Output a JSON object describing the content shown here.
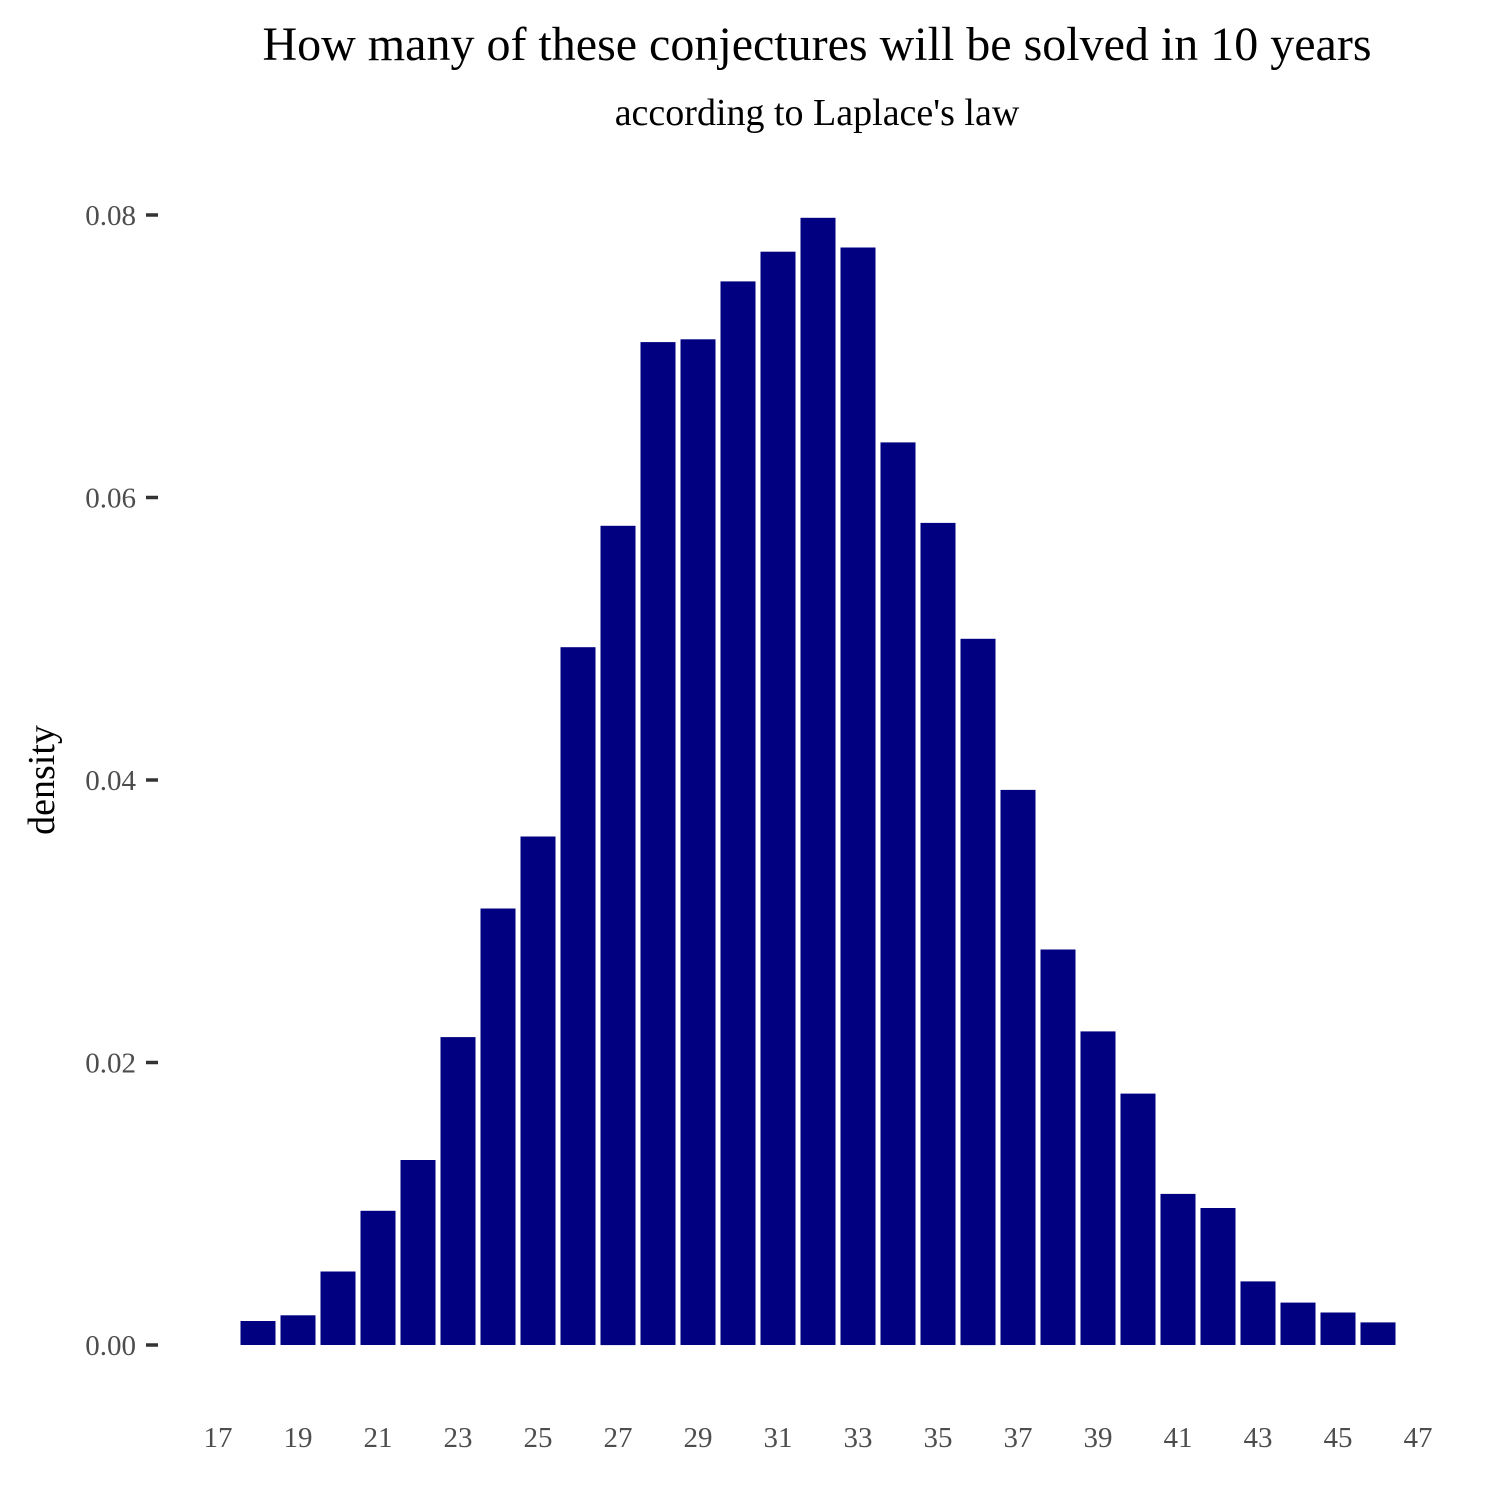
{
  "chart_data": {
    "type": "bar",
    "title": "How many of these conjectures will be solved in 10 years",
    "subtitle": "according to Laplace's law",
    "xlabel": "",
    "ylabel": "density",
    "x": [
      18,
      19,
      20,
      21,
      22,
      23,
      24,
      25,
      26,
      27,
      28,
      29,
      30,
      31,
      32,
      33,
      34,
      35,
      36,
      37,
      38,
      39,
      40,
      41,
      42,
      43,
      44,
      45,
      46
    ],
    "values": [
      0.0017,
      0.0021,
      0.0052,
      0.0095,
      0.0131,
      0.0218,
      0.0309,
      0.036,
      0.0494,
      0.058,
      0.071,
      0.0712,
      0.0753,
      0.0774,
      0.0798,
      0.0777,
      0.0639,
      0.0582,
      0.05,
      0.0393,
      0.028,
      0.0222,
      0.0178,
      0.0107,
      0.0097,
      0.0045,
      0.003,
      0.0023,
      0.0016
    ],
    "xticks": [
      17,
      19,
      21,
      23,
      25,
      27,
      29,
      31,
      33,
      35,
      37,
      39,
      41,
      43,
      45,
      47
    ],
    "yticks": [
      0.0,
      0.02,
      0.04,
      0.06,
      0.08
    ],
    "ytick_labels": [
      "0.00",
      "0.02",
      "0.04",
      "0.06",
      "0.08"
    ],
    "xlim": [
      17,
      47
    ],
    "ylim": [
      0,
      0.08
    ],
    "grid": false,
    "legend": "none",
    "colors": {
      "bar": "#000080",
      "tick_text": "#4d4d4d",
      "tick_mark": "#333333",
      "title": "#000000"
    }
  }
}
